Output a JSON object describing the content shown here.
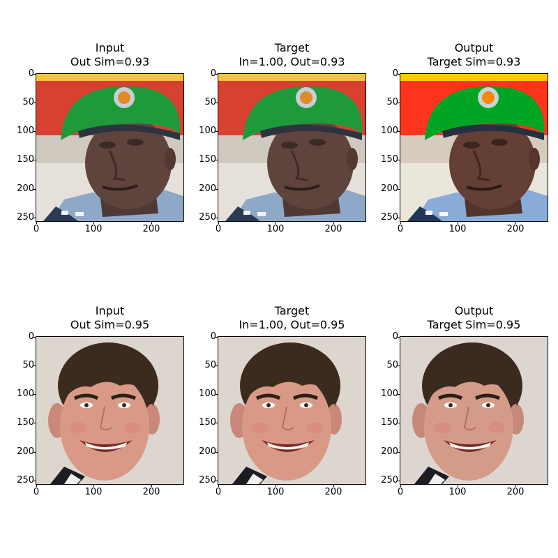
{
  "axes": {
    "yticks": [
      "0",
      "50",
      "100",
      "150",
      "200",
      "250"
    ],
    "xticks": [
      "0",
      "100",
      "200"
    ]
  },
  "rows": [
    {
      "photo": "man-green-beret",
      "panels": [
        {
          "title_line1": "Input",
          "title_line2": "Out Sim=0.93"
        },
        {
          "title_line1": "Target",
          "title_line2": "In=1.00, Out=0.93"
        },
        {
          "title_line1": "Output",
          "title_line2": "Target Sim=0.93"
        }
      ]
    },
    {
      "photo": "young-man-smiling",
      "panels": [
        {
          "title_line1": "Input",
          "title_line2": "Out Sim=0.95"
        },
        {
          "title_line1": "Target",
          "title_line2": "In=1.00, Out=0.95"
        },
        {
          "title_line1": "Output",
          "title_line2": "Target Sim=0.95"
        }
      ]
    }
  ],
  "colors": {
    "beret_green": "#1f9a3a",
    "flag_red": "#d8412f",
    "skin_dark": "#5a4038",
    "skin_light": "#d89a86",
    "hair_brown": "#3b2a1e",
    "background_light": "#ddd6cf"
  }
}
